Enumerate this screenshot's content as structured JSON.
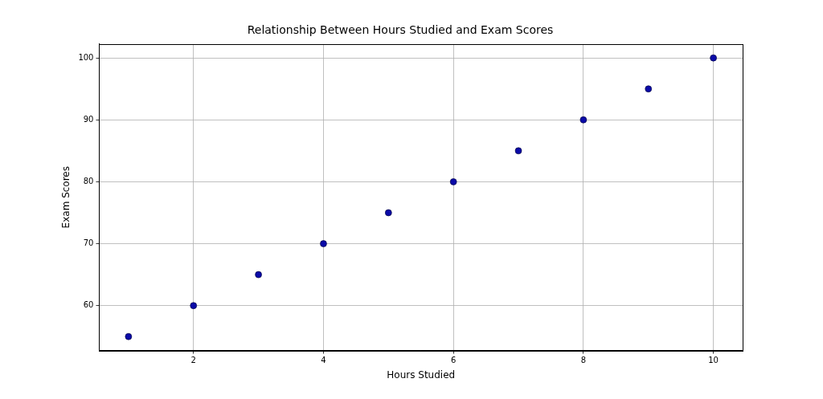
{
  "chart_data": {
    "type": "scatter",
    "title": "Relationship Between Hours Studied and Exam Scores",
    "x_label": "Hours Studied",
    "y_label": "Exam Scores",
    "x": [
      1,
      2,
      3,
      4,
      5,
      6,
      7,
      8,
      9,
      10
    ],
    "values": [
      55,
      60,
      65,
      70,
      75,
      80,
      85,
      90,
      95,
      100
    ],
    "color": "#0a0aa8",
    "marker": "o",
    "xlim": [
      0.55,
      10.45
    ],
    "xticks": [
      2,
      4,
      6,
      8,
      10
    ],
    "ylim": [
      52.75,
      102.25
    ],
    "yticks": [
      60,
      70,
      80,
      90,
      100
    ],
    "grid": true
  }
}
